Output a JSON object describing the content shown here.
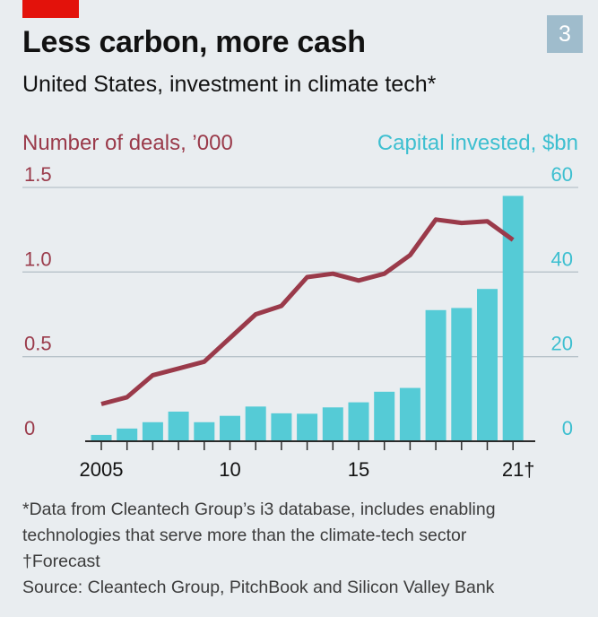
{
  "badge": "3",
  "title": "Less carbon, more cash",
  "subtitle": "United States, investment in climate tech*",
  "colors": {
    "brand_red": "#e3120b",
    "line": "#9a3a4a",
    "bars": "#55cbd6",
    "right_axis": "#3dbfd0",
    "badge_bg": "#9fbccc",
    "grid": "#b7c2c9",
    "baseline": "#2b2b2b"
  },
  "chart_data": {
    "type": "bar",
    "left_axis_label": "Number of deals, ’000",
    "right_axis_label": "Capital invested, $bn",
    "left_ticks": [
      "1.5",
      "1.0",
      "0.5",
      "0"
    ],
    "right_ticks": [
      "60",
      "40",
      "20",
      "0"
    ],
    "x_tick_labels": [
      "2005",
      "10",
      "15",
      "21†"
    ],
    "x_tick_years": [
      2005,
      2010,
      2015,
      2021
    ],
    "ylim_left": [
      0,
      1.5
    ],
    "ylim_right": [
      0,
      60
    ],
    "years": [
      2005,
      2006,
      2007,
      2008,
      2009,
      2010,
      2011,
      2012,
      2013,
      2014,
      2015,
      2016,
      2017,
      2018,
      2019,
      2020,
      2021
    ],
    "series": [
      {
        "name": "Capital invested, $bn",
        "kind": "bar",
        "axis": "right",
        "values": [
          1.5,
          3,
          4.5,
          7,
          4.5,
          6,
          8.2,
          6.6,
          6.5,
          8,
          9.2,
          11.7,
          12.6,
          31,
          31.5,
          36,
          58
        ]
      },
      {
        "name": "Number of deals, ’000",
        "kind": "line",
        "axis": "left",
        "values": [
          0.22,
          0.26,
          0.39,
          0.43,
          0.47,
          0.61,
          0.75,
          0.8,
          0.97,
          0.99,
          0.95,
          0.99,
          1.1,
          1.31,
          1.29,
          1.3,
          1.19
        ]
      }
    ],
    "forecast_marker": "21†"
  },
  "footnotes": {
    "line1": "*Data from Cleantech Group’s i3 database, includes enabling",
    "line2": "technologies that serve more than the climate-tech sector",
    "line3": "†Forecast",
    "source": "Source: Cleantech Group, PitchBook and Silicon Valley Bank"
  }
}
